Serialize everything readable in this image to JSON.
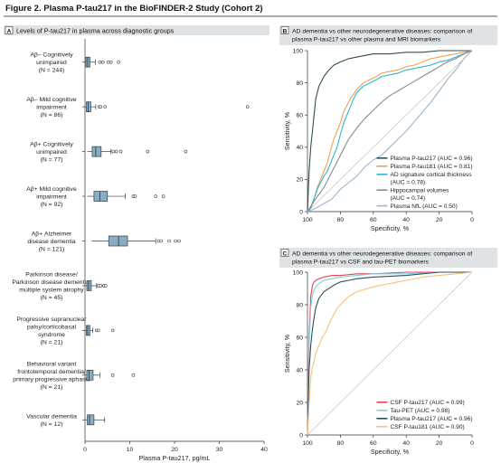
{
  "figure": {
    "title": "Figure 2. Plasma P-tau217 in the BioFINDER-2 Study (Cohort 2)"
  },
  "colors": {
    "box_fill": "#8aaec1",
    "box_stroke": "#2f3f4a",
    "header_bg": "#dfe3e6",
    "tau217": "#2e4d58",
    "tau181": "#f0a050",
    "adsig": "#2bb6d6",
    "hippo": "#8a8a8a",
    "nfl": "#9bb4d2",
    "csf217": "#e0455a",
    "taupet": "#7fd0e0",
    "csf181": "#f6c080"
  },
  "chart_data": [
    {
      "panel": "A",
      "type": "box",
      "title": "Levels of P-tau217 in plasma across diagnostic groups",
      "xlabel": "Plasma P-tau217, pg/mL",
      "xlim": [
        0,
        40
      ],
      "xticks": [
        "0",
        "10",
        "20",
        "30",
        "40"
      ],
      "groups": [
        {
          "label": [
            "Aβ– Cognitively",
            "unimpaired",
            "(N = 244)"
          ],
          "q1": 0.2,
          "median": 0.6,
          "q3": 1.1,
          "wmin": 0,
          "wmax": 2.3,
          "outliers": [
            3.3,
            4.0,
            5.2,
            5.8,
            7.5
          ]
        },
        {
          "label": [
            "Aβ– Mild cognitive",
            "impairment",
            "(N = 86)"
          ],
          "q1": 0.3,
          "median": 0.7,
          "q3": 1.3,
          "wmin": 0,
          "wmax": 2.4,
          "outliers": [
            3.2,
            3.5,
            4.5,
            36.3
          ]
        },
        {
          "label": [
            "Aβ+ Cognitively",
            "unimpaired",
            "(N = 77)"
          ],
          "q1": 1.6,
          "median": 2.4,
          "q3": 3.6,
          "wmin": 0.5,
          "wmax": 5.8,
          "outliers": [
            6.3,
            7.0,
            8.0,
            14.0,
            22.5
          ]
        },
        {
          "label": [
            "Aβ+ Mild cognitive",
            "impairment",
            "(N = 92)"
          ],
          "q1": 2.0,
          "median": 3.3,
          "q3": 5.0,
          "wmin": 0.5,
          "wmax": 9.0,
          "outliers": [
            10.8,
            11.2,
            15.8,
            17.5
          ]
        },
        {
          "label": [
            "Aβ+ Alzheimer",
            "disease dementia",
            "(N = 121)"
          ],
          "q1": 5.3,
          "median": 7.5,
          "q3": 9.5,
          "wmin": 1.5,
          "wmax": 15.8,
          "outliers": [
            16.5,
            17.0,
            18.8,
            20.2,
            21.0
          ]
        },
        {
          "label": [
            "Parkinson disease/",
            "Parkinson disease dementia/",
            "multiple system atrophy",
            "(N = 45)"
          ],
          "q1": 0.4,
          "median": 0.8,
          "q3": 1.4,
          "wmin": 0,
          "wmax": 2.6,
          "outliers": [
            3.0,
            3.5,
            4.2,
            4.6
          ]
        },
        {
          "label": [
            "Progressive supranuclear",
            "palsy/corticobasal",
            "syndrome",
            "(N = 21)"
          ],
          "q1": 0.3,
          "median": 0.6,
          "q3": 1.1,
          "wmin": 0,
          "wmax": 1.7,
          "outliers": [
            2.6,
            3.0,
            6.2
          ]
        },
        {
          "label": [
            "Behavioral variant",
            "frontotemporal dementia/",
            "primary progressive aphasia",
            "(N = 21)"
          ],
          "q1": 0.4,
          "median": 0.9,
          "q3": 1.8,
          "wmin": 0,
          "wmax": 3.3,
          "outliers": [
            6.2,
            10.8
          ]
        },
        {
          "label": [
            "Vascular dementia",
            "(N = 12)"
          ],
          "q1": 0.5,
          "median": 1.0,
          "q3": 2.0,
          "wmin": 0,
          "wmax": 4.4,
          "outliers": []
        }
      ]
    },
    {
      "panel": "B",
      "type": "line",
      "title": [
        "AD dementia vs other neurodegenerative diseases: comparison of",
        "plasma P-tau217 vs other plasma and MRI biomarkers"
      ],
      "xlabel": "Specificity, %",
      "ylabel": "Sensitivity, %",
      "xlim": [
        100,
        0
      ],
      "ylim": [
        0,
        100
      ],
      "xticks": [
        "100",
        "80",
        "60",
        "40",
        "20",
        "0"
      ],
      "yticks": [
        "0",
        "20",
        "40",
        "60",
        "80",
        "100"
      ],
      "legend": [
        {
          "key": "tau217",
          "text": [
            "Plasma P-tau217 (AUC = 0.96)"
          ]
        },
        {
          "key": "tau181",
          "text": [
            "Plasma P-tau181 (AUC = 0.81)"
          ]
        },
        {
          "key": "adsig",
          "text": [
            "AD signature cortical thickness",
            "(AUC = 0.78)"
          ]
        },
        {
          "key": "hippo",
          "text": [
            "Hippocampal volumes",
            "(AUC = 0.74)"
          ]
        },
        {
          "key": "nfl",
          "text": [
            "Plasma NfL (AUC = 0.50)"
          ]
        }
      ],
      "series": [
        {
          "key": "tau217",
          "spec": [
            100,
            99,
            98,
            97,
            96,
            95,
            93,
            90,
            87,
            84,
            80,
            75,
            70,
            65,
            60,
            50,
            40,
            30,
            20,
            10,
            0
          ],
          "sens": [
            0,
            25,
            40,
            50,
            60,
            70,
            78,
            84,
            88,
            91,
            93,
            95,
            96,
            97,
            98,
            98,
            99,
            99,
            100,
            100,
            100
          ]
        },
        {
          "key": "tau181",
          "spec": [
            100,
            98,
            96,
            94,
            92,
            90,
            88,
            86,
            84,
            82,
            80,
            78,
            76,
            74,
            72,
            70,
            68,
            66,
            62,
            58,
            55,
            50,
            45,
            40,
            35,
            30,
            25,
            20,
            15,
            10,
            5,
            0
          ],
          "sens": [
            0,
            3,
            8,
            15,
            20,
            25,
            30,
            38,
            45,
            50,
            55,
            62,
            66,
            70,
            73,
            76,
            78,
            80,
            82,
            84,
            86,
            87,
            88,
            90,
            91,
            93,
            95,
            96,
            97,
            98,
            99,
            100
          ]
        },
        {
          "key": "adsig",
          "spec": [
            100,
            98,
            96,
            94,
            92,
            90,
            88,
            86,
            84,
            82,
            80,
            78,
            76,
            74,
            72,
            70,
            68,
            66,
            62,
            58,
            55,
            50,
            45,
            40,
            35,
            30,
            25,
            20,
            15,
            10,
            5,
            0
          ],
          "sens": [
            0,
            2,
            8,
            14,
            18,
            22,
            25,
            30,
            35,
            40,
            48,
            55,
            60,
            65,
            70,
            74,
            76,
            78,
            80,
            82,
            84,
            85,
            86,
            88,
            89,
            90,
            91,
            93,
            94,
            96,
            98,
            100
          ]
        },
        {
          "key": "hippo",
          "spec": [
            100,
            95,
            90,
            85,
            80,
            75,
            70,
            65,
            60,
            55,
            50,
            45,
            40,
            35,
            30,
            25,
            20,
            15,
            10,
            5,
            0
          ],
          "sens": [
            0,
            8,
            15,
            25,
            35,
            45,
            52,
            58,
            63,
            68,
            72,
            75,
            78,
            81,
            84,
            87,
            90,
            93,
            95,
            98,
            100
          ]
        },
        {
          "key": "nfl",
          "spec": [
            100,
            95,
            90,
            85,
            80,
            75,
            70,
            65,
            60,
            55,
            50,
            45,
            40,
            35,
            30,
            25,
            20,
            15,
            10,
            5,
            0
          ],
          "sens": [
            0,
            2,
            5,
            8,
            14,
            18,
            22,
            28,
            32,
            35,
            40,
            45,
            50,
            56,
            62,
            68,
            75,
            82,
            88,
            95,
            100
          ]
        }
      ]
    },
    {
      "panel": "C",
      "type": "line",
      "title": [
        "AD dementia vs other neurodegenerative diseases: comparison of",
        "plasma P-tau217 vs CSF and tau-PET biomarkers"
      ],
      "xlabel": "Specificity, %",
      "ylabel": "Sensitivity, %",
      "xlim": [
        100,
        0
      ],
      "ylim": [
        0,
        100
      ],
      "xticks": [
        "100",
        "80",
        "60",
        "40",
        "20",
        "0"
      ],
      "yticks": [
        "0",
        "20",
        "40",
        "60",
        "80",
        "100"
      ],
      "legend": [
        {
          "key": "csf217",
          "text": [
            "CSF P-tau217 (AUC = 0.99)"
          ]
        },
        {
          "key": "taupet",
          "text": [
            "Tau-PET (AUC = 0.98)"
          ]
        },
        {
          "key": "tau217",
          "text": [
            "Plasma P-tau217 (AUC = 0.96)"
          ]
        },
        {
          "key": "csf181",
          "text": [
            "CSF P-tau181 (AUC = 0.90)"
          ]
        }
      ],
      "series": [
        {
          "key": "csf217",
          "spec": [
            100,
            99,
            98,
            97,
            96,
            95,
            93,
            90,
            85,
            80,
            70,
            60,
            40,
            20,
            0
          ],
          "sens": [
            0,
            60,
            85,
            92,
            94,
            95,
            96,
            97,
            98,
            98,
            99,
            99,
            100,
            100,
            100
          ]
        },
        {
          "key": "taupet",
          "spec": [
            100,
            99,
            98,
            97,
            96,
            95,
            93,
            90,
            85,
            80,
            70,
            60,
            40,
            20,
            0
          ],
          "sens": [
            0,
            55,
            78,
            86,
            89,
            91,
            93,
            95,
            96,
            97,
            98,
            99,
            99,
            100,
            100
          ]
        },
        {
          "key": "tau217",
          "spec": [
            100,
            99,
            98,
            97,
            96,
            95,
            93,
            90,
            87,
            84,
            80,
            75,
            70,
            60,
            40,
            20,
            0
          ],
          "sens": [
            0,
            40,
            55,
            65,
            72,
            78,
            84,
            88,
            90,
            92,
            94,
            95,
            96,
            97,
            98,
            100,
            100
          ]
        },
        {
          "key": "csf181",
          "spec": [
            100,
            99,
            98,
            97,
            96,
            95,
            93,
            91,
            89,
            87,
            85,
            82,
            80,
            75,
            70,
            60,
            50,
            40,
            30,
            20,
            10,
            0
          ],
          "sens": [
            0,
            20,
            35,
            42,
            45,
            50,
            55,
            60,
            63,
            68,
            72,
            78,
            80,
            85,
            88,
            91,
            93,
            95,
            97,
            98,
            99,
            100
          ]
        }
      ]
    }
  ]
}
